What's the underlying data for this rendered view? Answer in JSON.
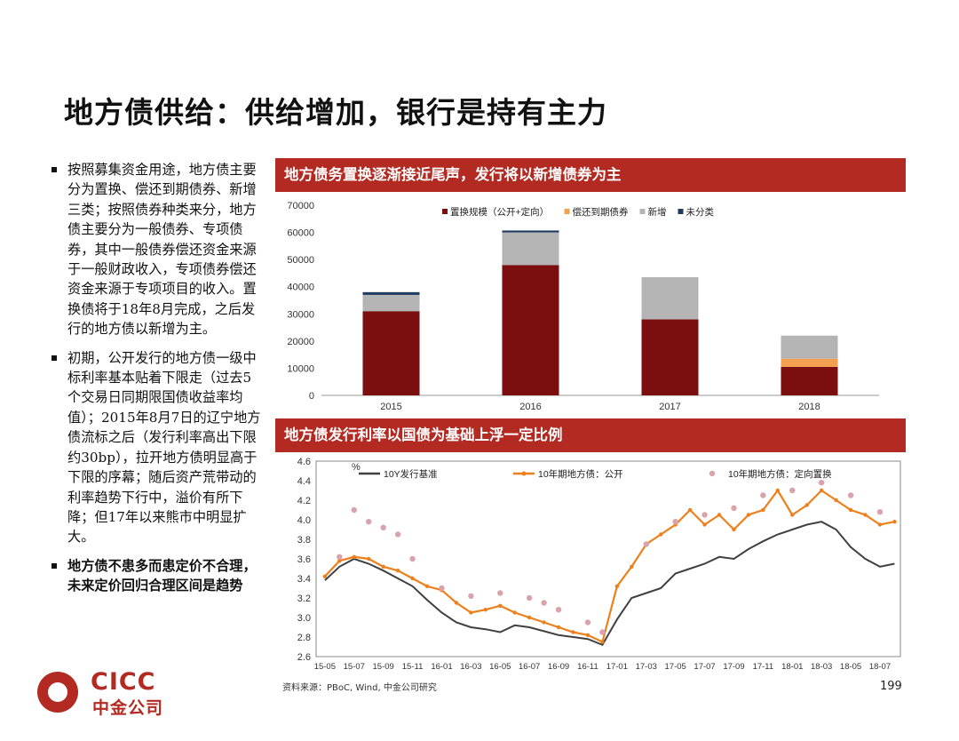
{
  "title": "地方债供给：供给增加，银行是持有主力",
  "bullets": [
    {
      "text": "按照募集资金用途，地方债主要分为置换、偿还到期债券、新增三类；按照债券种类来分，地方债主要分为一般债券、专项债券，其中一般债券偿还资金来源于一般财政收入，专项债券偿还资金来源于专项项目的收入。置换债将于18年8月完成，之后发行的地方债以新增为主。",
      "bold": false
    },
    {
      "text": "初期，公开发行的地方债一级中标利率基本贴着下限走（过去5个交易日同期限国债收益率均值）；2015年8月7日的辽宁地方债流标之后（发行利率高出下限约30bp），拉开地方债明显高于下限的序幕；随后资产荒带动的利率趋势下行中，溢价有所下降；但17年以来熊市中明显扩大。",
      "bold": false
    },
    {
      "text": "地方债不患多而患定价不合理，未来定价回归合理区间是趋势",
      "bold": true
    }
  ],
  "source": "资料来源：PBoC, Wind, 中金公司研究",
  "page_number": "199",
  "logo": {
    "en": "CICC",
    "cn": "中金公司"
  },
  "colors": {
    "brand_red": "#b22a22",
    "bar_dark": "#7b0e0e",
    "bar_orange": "#f5a050",
    "bar_gray": "#b4b4b4",
    "bar_navy": "#1f3a5f",
    "line_dark": "#404040",
    "line_orange": "#ee7f1a",
    "dot_pink": "#d9a3ac"
  },
  "chart_data": [
    {
      "type": "bar",
      "title": "地方债务置换逐渐接近尾声，发行将以新增债券为主",
      "stacked": true,
      "categories": [
        "2015",
        "2016",
        "2017",
        "2018"
      ],
      "series": [
        {
          "name": "置换规模（公开+定向）",
          "color": "#7b0e0e",
          "values": [
            31000,
            48000,
            28000,
            10500
          ]
        },
        {
          "name": "偿还到期债券",
          "color": "#f5a050",
          "values": [
            0,
            0,
            0,
            3000
          ]
        },
        {
          "name": "新增",
          "color": "#b4b4b4",
          "values": [
            6000,
            12000,
            15500,
            8500
          ]
        },
        {
          "name": "未分类",
          "color": "#1f3a5f",
          "values": [
            1000,
            700,
            0,
            0
          ]
        }
      ],
      "ylim": [
        0,
        70000
      ],
      "yticks": [
        0,
        10000,
        20000,
        30000,
        40000,
        50000,
        60000,
        70000
      ],
      "legend": "top",
      "grid": false
    },
    {
      "type": "line",
      "title": "地方债发行利率以国债为基础上浮一定比例",
      "ylabel": "%",
      "ylim": [
        2.6,
        4.6
      ],
      "yticks": [
        "2.6",
        "2.8",
        "3.0",
        "3.2",
        "3.4",
        "3.6",
        "3.8",
        "4.0",
        "4.2",
        "4.4",
        "4.6"
      ],
      "xticks": [
        "15-05",
        "15-07",
        "15-09",
        "15-11",
        "16-01",
        "16-03",
        "16-05",
        "16-07",
        "16-09",
        "16-11",
        "17-01",
        "17-03",
        "17-05",
        "17-07",
        "17-09",
        "17-11",
        "18-01",
        "18-03",
        "18-05",
        "18-07"
      ],
      "legend": "top",
      "grid": false,
      "series": [
        {
          "name": "10Y发行基准",
          "style": "line",
          "color": "#404040",
          "x": [
            0,
            0.5,
            1,
            1.5,
            2,
            2.5,
            3,
            3.5,
            4,
            4.5,
            5,
            5.5,
            6,
            6.5,
            7,
            7.5,
            8,
            8.5,
            9,
            9.5,
            10,
            10.5,
            11,
            11.5,
            12,
            12.5,
            13,
            13.5,
            14,
            14.5,
            15,
            15.5,
            16,
            16.5,
            17,
            17.5,
            18,
            18.5,
            19,
            19.5
          ],
          "y": [
            3.38,
            3.52,
            3.6,
            3.55,
            3.48,
            3.4,
            3.32,
            3.18,
            3.05,
            2.95,
            2.9,
            2.88,
            2.85,
            2.92,
            2.9,
            2.86,
            2.82,
            2.8,
            2.78,
            2.72,
            2.98,
            3.2,
            3.25,
            3.3,
            3.45,
            3.5,
            3.55,
            3.62,
            3.6,
            3.7,
            3.78,
            3.85,
            3.9,
            3.95,
            3.98,
            3.9,
            3.72,
            3.6,
            3.52,
            3.55
          ]
        },
        {
          "name": "10年期地方债：公开",
          "style": "line-marker",
          "color": "#ee7f1a",
          "x": [
            0,
            0.5,
            1,
            1.5,
            2,
            2.5,
            3,
            3.5,
            4,
            4.5,
            5,
            5.5,
            6,
            6.5,
            7,
            7.5,
            8,
            8.5,
            9,
            9.5,
            10,
            10.5,
            11,
            11.5,
            12,
            12.5,
            13,
            13.5,
            14,
            14.5,
            15,
            15.5,
            16,
            16.5,
            17,
            17.5,
            18,
            18.5,
            19,
            19.5
          ],
          "y": [
            3.42,
            3.58,
            3.62,
            3.6,
            3.52,
            3.48,
            3.4,
            3.32,
            3.28,
            3.15,
            3.05,
            3.08,
            3.12,
            3.05,
            3.0,
            2.95,
            2.9,
            2.85,
            2.82,
            2.75,
            3.32,
            3.52,
            3.75,
            3.85,
            3.95,
            4.1,
            3.95,
            4.05,
            3.9,
            4.05,
            4.1,
            4.3,
            4.05,
            4.15,
            4.3,
            4.2,
            4.1,
            4.05,
            3.95,
            3.98
          ]
        },
        {
          "name": "10年期地方债：定向置换",
          "style": "scatter",
          "color": "#d9a3ac",
          "x": [
            0.5,
            1,
            1.5,
            2,
            2.5,
            3,
            4,
            5,
            6,
            7,
            7.5,
            8,
            9,
            9.5,
            11,
            12,
            13,
            14,
            15,
            16,
            17,
            18,
            19
          ],
          "y": [
            3.62,
            4.1,
            3.98,
            3.92,
            3.85,
            3.6,
            3.3,
            3.22,
            3.25,
            3.2,
            3.15,
            3.08,
            2.95,
            2.85,
            3.75,
            3.98,
            4.05,
            4.12,
            4.25,
            4.3,
            4.38,
            4.25,
            4.08
          ]
        }
      ]
    }
  ]
}
